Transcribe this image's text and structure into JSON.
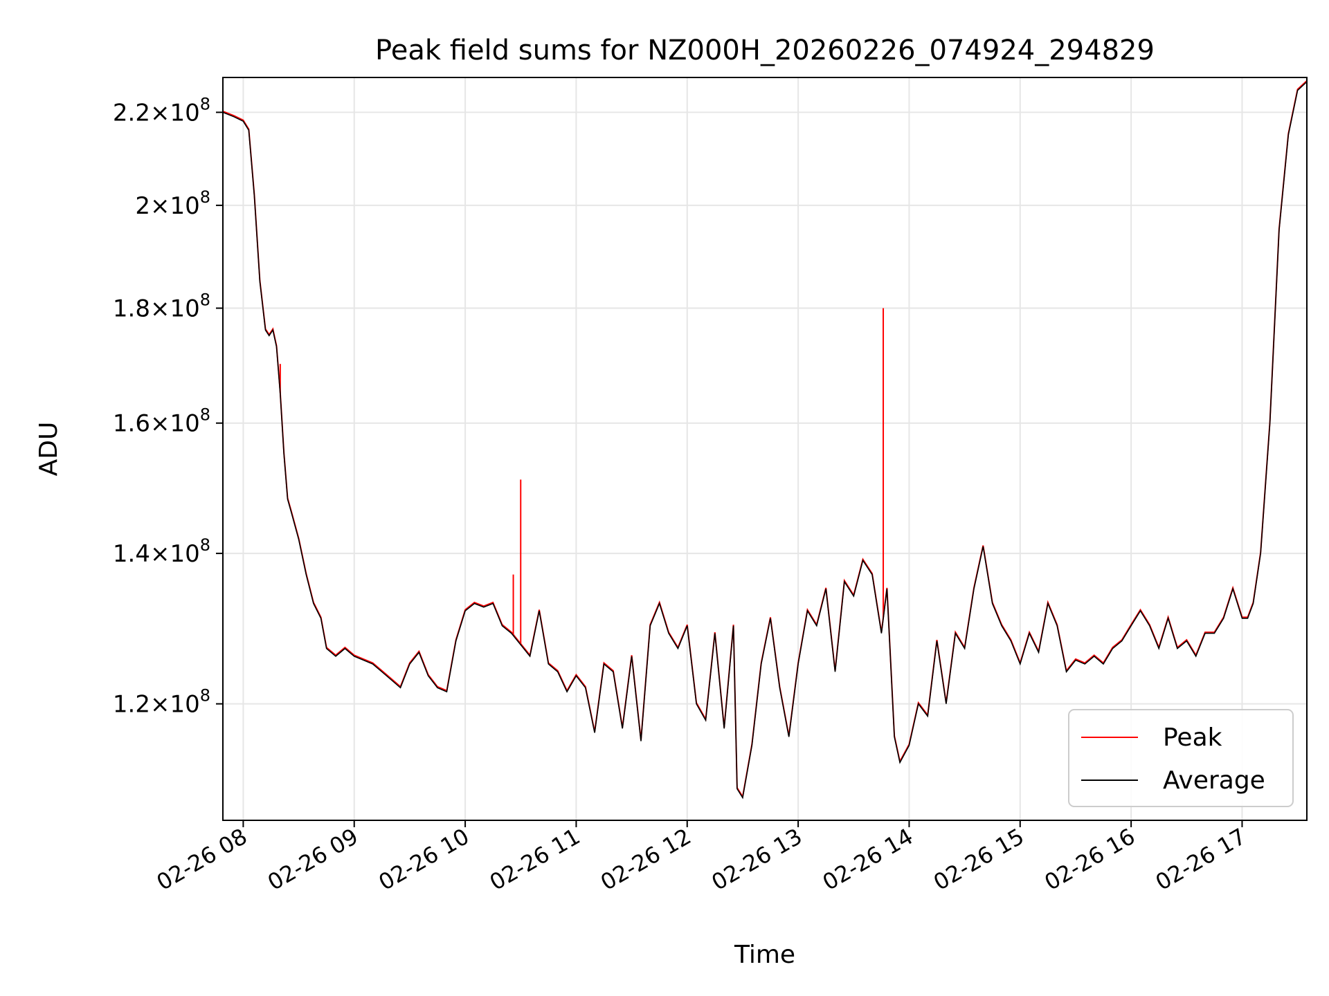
{
  "chart_data": {
    "type": "line",
    "title": "Peak field sums for NZ000H_20260226_074924_294829",
    "xlabel": "Time",
    "ylabel": "ADU",
    "y_scale": "log",
    "grid": true,
    "legend_position": "lower-right",
    "xlim": [
      "02-26 07:49",
      "02-26 17:35"
    ],
    "ylim": [
      106500000.0,
      228000000.0
    ],
    "x_ticks": [
      "02-26 08",
      "02-26 09",
      "02-26 10",
      "02-26 11",
      "02-26 12",
      "02-26 13",
      "02-26 14",
      "02-26 15",
      "02-26 16",
      "02-26 17"
    ],
    "y_ticks": [
      {
        "value": 120000000.0,
        "mantissa": "1.2",
        "exp": "8"
      },
      {
        "value": 140000000.0,
        "mantissa": "1.4",
        "exp": "8"
      },
      {
        "value": 160000000.0,
        "mantissa": "1.6",
        "exp": "8"
      },
      {
        "value": 180000000.0,
        "mantissa": "1.8",
        "exp": "8"
      },
      {
        "value": 200000000.0,
        "mantissa": "2",
        "exp": "8"
      },
      {
        "value": 220000000.0,
        "mantissa": "2.2",
        "exp": "8"
      }
    ],
    "series": [
      {
        "name": "Average",
        "color": "#000000",
        "x": [
          "02-26 07:49",
          "02-26 07:55",
          "02-26 08:00",
          "02-26 08:03",
          "02-26 08:06",
          "02-26 08:09",
          "02-26 08:12",
          "02-26 08:14",
          "02-26 08:16",
          "02-26 08:18",
          "02-26 08:20",
          "02-26 08:22",
          "02-26 08:24",
          "02-26 08:26",
          "02-26 08:30",
          "02-26 08:34",
          "02-26 08:38",
          "02-26 08:42",
          "02-26 08:45",
          "02-26 08:50",
          "02-26 08:55",
          "02-26 09:00",
          "02-26 09:05",
          "02-26 09:10",
          "02-26 09:15",
          "02-26 09:20",
          "02-26 09:25",
          "02-26 09:30",
          "02-26 09:35",
          "02-26 09:40",
          "02-26 09:45",
          "02-26 09:50",
          "02-26 09:55",
          "02-26 10:00",
          "02-26 10:05",
          "02-26 10:10",
          "02-26 10:15",
          "02-26 10:20",
          "02-26 10:25",
          "02-26 10:30",
          "02-26 10:35",
          "02-26 10:40",
          "02-26 10:45",
          "02-26 10:50",
          "02-26 10:55",
          "02-26 11:00",
          "02-26 11:05",
          "02-26 11:10",
          "02-26 11:15",
          "02-26 11:20",
          "02-26 11:25",
          "02-26 11:30",
          "02-26 11:35",
          "02-26 11:40",
          "02-26 11:45",
          "02-26 11:50",
          "02-26 11:55",
          "02-26 12:00",
          "02-26 12:05",
          "02-26 12:10",
          "02-26 12:15",
          "02-26 12:20",
          "02-26 12:25",
          "02-26 12:27",
          "02-26 12:30",
          "02-26 12:35",
          "02-26 12:40",
          "02-26 12:45",
          "02-26 12:50",
          "02-26 12:55",
          "02-26 13:00",
          "02-26 13:05",
          "02-26 13:10",
          "02-26 13:15",
          "02-26 13:20",
          "02-26 13:25",
          "02-26 13:30",
          "02-26 13:35",
          "02-26 13:40",
          "02-26 13:45",
          "02-26 13:48",
          "02-26 13:52",
          "02-26 13:55",
          "02-26 14:00",
          "02-26 14:05",
          "02-26 14:10",
          "02-26 14:15",
          "02-26 14:20",
          "02-26 14:25",
          "02-26 14:30",
          "02-26 14:35",
          "02-26 14:40",
          "02-26 14:45",
          "02-26 14:50",
          "02-26 14:55",
          "02-26 15:00",
          "02-26 15:05",
          "02-26 15:10",
          "02-26 15:15",
          "02-26 15:20",
          "02-26 15:25",
          "02-26 15:30",
          "02-26 15:35",
          "02-26 15:40",
          "02-26 15:45",
          "02-26 15:50",
          "02-26 15:55",
          "02-26 16:00",
          "02-26 16:05",
          "02-26 16:10",
          "02-26 16:15",
          "02-26 16:20",
          "02-26 16:25",
          "02-26 16:30",
          "02-26 16:35",
          "02-26 16:40",
          "02-26 16:45",
          "02-26 16:50",
          "02-26 16:55",
          "02-26 17:00",
          "02-26 17:03",
          "02-26 17:06",
          "02-26 17:10",
          "02-26 17:15",
          "02-26 17:20",
          "02-26 17:25",
          "02-26 17:30",
          "02-26 17:35"
        ],
        "values": [
          220000000.0,
          219000000.0,
          218000000.0,
          216000000.0,
          202000000.0,
          185000000.0,
          176000000.0,
          175000000.0,
          176000000.0,
          173000000.0,
          165000000.0,
          155000000.0,
          148000000.0,
          146000000.0,
          142000000.0,
          137000000.0,
          133000000.0,
          131000000.0,
          127000000.0,
          126000000.0,
          127000000.0,
          126000000.0,
          125500000.0,
          125000000.0,
          124000000.0,
          123000000.0,
          122000000.0,
          125000000.0,
          126500000.0,
          123500000.0,
          122000000.0,
          121500000.0,
          128000000.0,
          132000000.0,
          133000000.0,
          132500000.0,
          133000000.0,
          130000000.0,
          129000000.0,
          127500000.0,
          126000000.0,
          132000000.0,
          125000000.0,
          124000000.0,
          121500000.0,
          123500000.0,
          122000000.0,
          116500000.0,
          125000000.0,
          124000000.0,
          117000000.0,
          126000000.0,
          115500000.0,
          130000000.0,
          133000000.0,
          129000000.0,
          127000000.0,
          130000000.0,
          120000000.0,
          118000000.0,
          129000000.0,
          117000000.0,
          130000000.0,
          110000000.0,
          109000000.0,
          115000000.0,
          125000000.0,
          131000000.0,
          122000000.0,
          116000000.0,
          125000000.0,
          132000000.0,
          130000000.0,
          135000000.0,
          124000000.0,
          136000000.0,
          134000000.0,
          139000000.0,
          137000000.0,
          129000000.0,
          135000000.0,
          116000000.0,
          113000000.0,
          115000000.0,
          120000000.0,
          118500000.0,
          128000000.0,
          120000000.0,
          129000000.0,
          127000000.0,
          135000000.0,
          141000000.0,
          133000000.0,
          130000000.0,
          128000000.0,
          125000000.0,
          129000000.0,
          126500000.0,
          133000000.0,
          130000000.0,
          124000000.0,
          125500000.0,
          125000000.0,
          126000000.0,
          125000000.0,
          127000000.0,
          128000000.0,
          130000000.0,
          132000000.0,
          130000000.0,
          127000000.0,
          131000000.0,
          127000000.0,
          128000000.0,
          126000000.0,
          129000000.0,
          129000000.0,
          131000000.0,
          135000000.0,
          131000000.0,
          131000000.0,
          133000000.0,
          140000000.0,
          160000000.0,
          195000000.0,
          215000000.0,
          225000000.0,
          227000000.0
        ]
      },
      {
        "name": "Peak",
        "color": "#ff0000",
        "note_spikes": [
          {
            "x": "02-26 08:20",
            "value": 170000000.0
          },
          {
            "x": "02-26 10:26",
            "value": 137000000.0
          },
          {
            "x": "02-26 10:30",
            "value": 151000000.0
          },
          {
            "x": "02-26 13:46",
            "value": 180000000.0
          }
        ]
      }
    ],
    "legend": [
      {
        "label": "Peak",
        "color": "#ff0000"
      },
      {
        "label": "Average",
        "color": "#000000"
      }
    ]
  }
}
